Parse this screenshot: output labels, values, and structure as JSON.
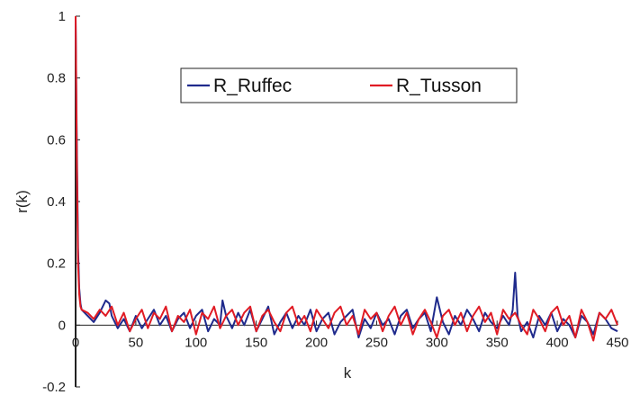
{
  "chart_data": {
    "type": "line",
    "title": "",
    "xlabel": "k",
    "ylabel": "r(k)",
    "xlim": [
      0,
      450
    ],
    "ylim": [
      -0.2,
      1
    ],
    "xticks": [
      "0",
      "50",
      "100",
      "150",
      "200",
      "250",
      "300",
      "350",
      "400",
      "450"
    ],
    "yticks": [
      "-0.2",
      "0",
      "0.2",
      "0.4",
      "0.6",
      "0.8",
      "1"
    ],
    "legend_position": "top-right",
    "grid": false,
    "series": [
      {
        "name": "R_Ruffec",
        "color": "#1f2a8c",
        "x": [
          0,
          1,
          2,
          3,
          4,
          5,
          10,
          15,
          20,
          25,
          28,
          30,
          35,
          40,
          45,
          50,
          55,
          60,
          65,
          70,
          75,
          80,
          85,
          90,
          95,
          100,
          105,
          110,
          115,
          120,
          122,
          125,
          130,
          135,
          140,
          145,
          150,
          155,
          160,
          165,
          170,
          175,
          180,
          185,
          190,
          195,
          200,
          205,
          210,
          215,
          220,
          225,
          230,
          235,
          240,
          245,
          250,
          255,
          260,
          265,
          270,
          275,
          280,
          285,
          290,
          295,
          300,
          305,
          310,
          315,
          320,
          325,
          330,
          335,
          340,
          345,
          350,
          355,
          360,
          363,
          365,
          367,
          370,
          375,
          380,
          385,
          390,
          395,
          400,
          405,
          410,
          415,
          420,
          425,
          430,
          435,
          440,
          445,
          450
        ],
        "y": [
          1.0,
          0.6,
          0.25,
          0.12,
          0.07,
          0.05,
          0.03,
          0.01,
          0.04,
          0.08,
          0.07,
          0.03,
          -0.01,
          0.02,
          -0.02,
          0.03,
          -0.01,
          0.02,
          0.05,
          0.0,
          0.03,
          -0.02,
          0.02,
          0.04,
          -0.01,
          0.03,
          0.05,
          -0.02,
          0.02,
          0.0,
          0.08,
          0.03,
          -0.01,
          0.04,
          0.0,
          0.05,
          -0.02,
          0.02,
          0.06,
          -0.03,
          0.01,
          0.04,
          -0.01,
          0.03,
          0.0,
          0.05,
          -0.02,
          0.02,
          0.04,
          -0.03,
          0.01,
          0.03,
          0.05,
          -0.04,
          0.02,
          -0.01,
          0.04,
          0.0,
          0.02,
          -0.03,
          0.03,
          0.05,
          -0.01,
          0.02,
          0.04,
          -0.02,
          0.09,
          0.01,
          -0.03,
          0.03,
          0.0,
          0.05,
          0.02,
          -0.02,
          0.04,
          0.01,
          -0.01,
          0.03,
          0.0,
          0.05,
          0.17,
          0.03,
          -0.02,
          0.01,
          -0.04,
          0.03,
          0.0,
          0.04,
          -0.02,
          0.02,
          0.0,
          -0.04,
          0.03,
          0.01,
          -0.03,
          0.04,
          0.02,
          -0.01,
          -0.02
        ]
      },
      {
        "name": "R_Tusson",
        "color": "#e01b24",
        "x": [
          0,
          1,
          2,
          3,
          4,
          5,
          10,
          15,
          20,
          25,
          30,
          35,
          40,
          45,
          50,
          55,
          60,
          65,
          70,
          75,
          80,
          85,
          90,
          95,
          100,
          105,
          110,
          115,
          120,
          125,
          130,
          135,
          140,
          145,
          150,
          155,
          160,
          165,
          170,
          175,
          180,
          185,
          190,
          195,
          200,
          205,
          210,
          215,
          220,
          225,
          230,
          235,
          240,
          245,
          250,
          255,
          260,
          265,
          270,
          275,
          280,
          285,
          290,
          295,
          300,
          305,
          310,
          315,
          320,
          325,
          330,
          335,
          340,
          345,
          350,
          355,
          360,
          365,
          370,
          375,
          380,
          385,
          390,
          395,
          400,
          405,
          410,
          415,
          420,
          425,
          430,
          435,
          440,
          445,
          450
        ],
        "y": [
          1.0,
          0.55,
          0.2,
          0.1,
          0.06,
          0.05,
          0.04,
          0.02,
          0.05,
          0.03,
          0.06,
          0.0,
          0.04,
          -0.02,
          0.02,
          0.05,
          -0.01,
          0.04,
          0.02,
          0.06,
          -0.02,
          0.03,
          0.01,
          0.05,
          -0.03,
          0.04,
          0.02,
          0.06,
          -0.01,
          0.03,
          0.05,
          0.0,
          0.04,
          0.06,
          -0.02,
          0.03,
          0.05,
          0.01,
          -0.02,
          0.04,
          0.06,
          0.0,
          0.03,
          -0.02,
          0.05,
          0.02,
          -0.01,
          0.04,
          0.06,
          0.0,
          0.03,
          -0.03,
          0.05,
          0.02,
          0.04,
          -0.02,
          0.03,
          0.06,
          0.0,
          0.04,
          -0.03,
          0.02,
          0.05,
          0.01,
          -0.04,
          0.03,
          0.05,
          0.0,
          0.04,
          -0.02,
          0.03,
          0.06,
          0.01,
          0.04,
          -0.03,
          0.05,
          0.02,
          0.04,
          0.0,
          -0.03,
          0.05,
          0.02,
          -0.02,
          0.04,
          0.06,
          0.0,
          0.03,
          -0.04,
          0.05,
          0.01,
          -0.05,
          0.04,
          0.02,
          0.05,
          0.0
        ]
      }
    ]
  }
}
